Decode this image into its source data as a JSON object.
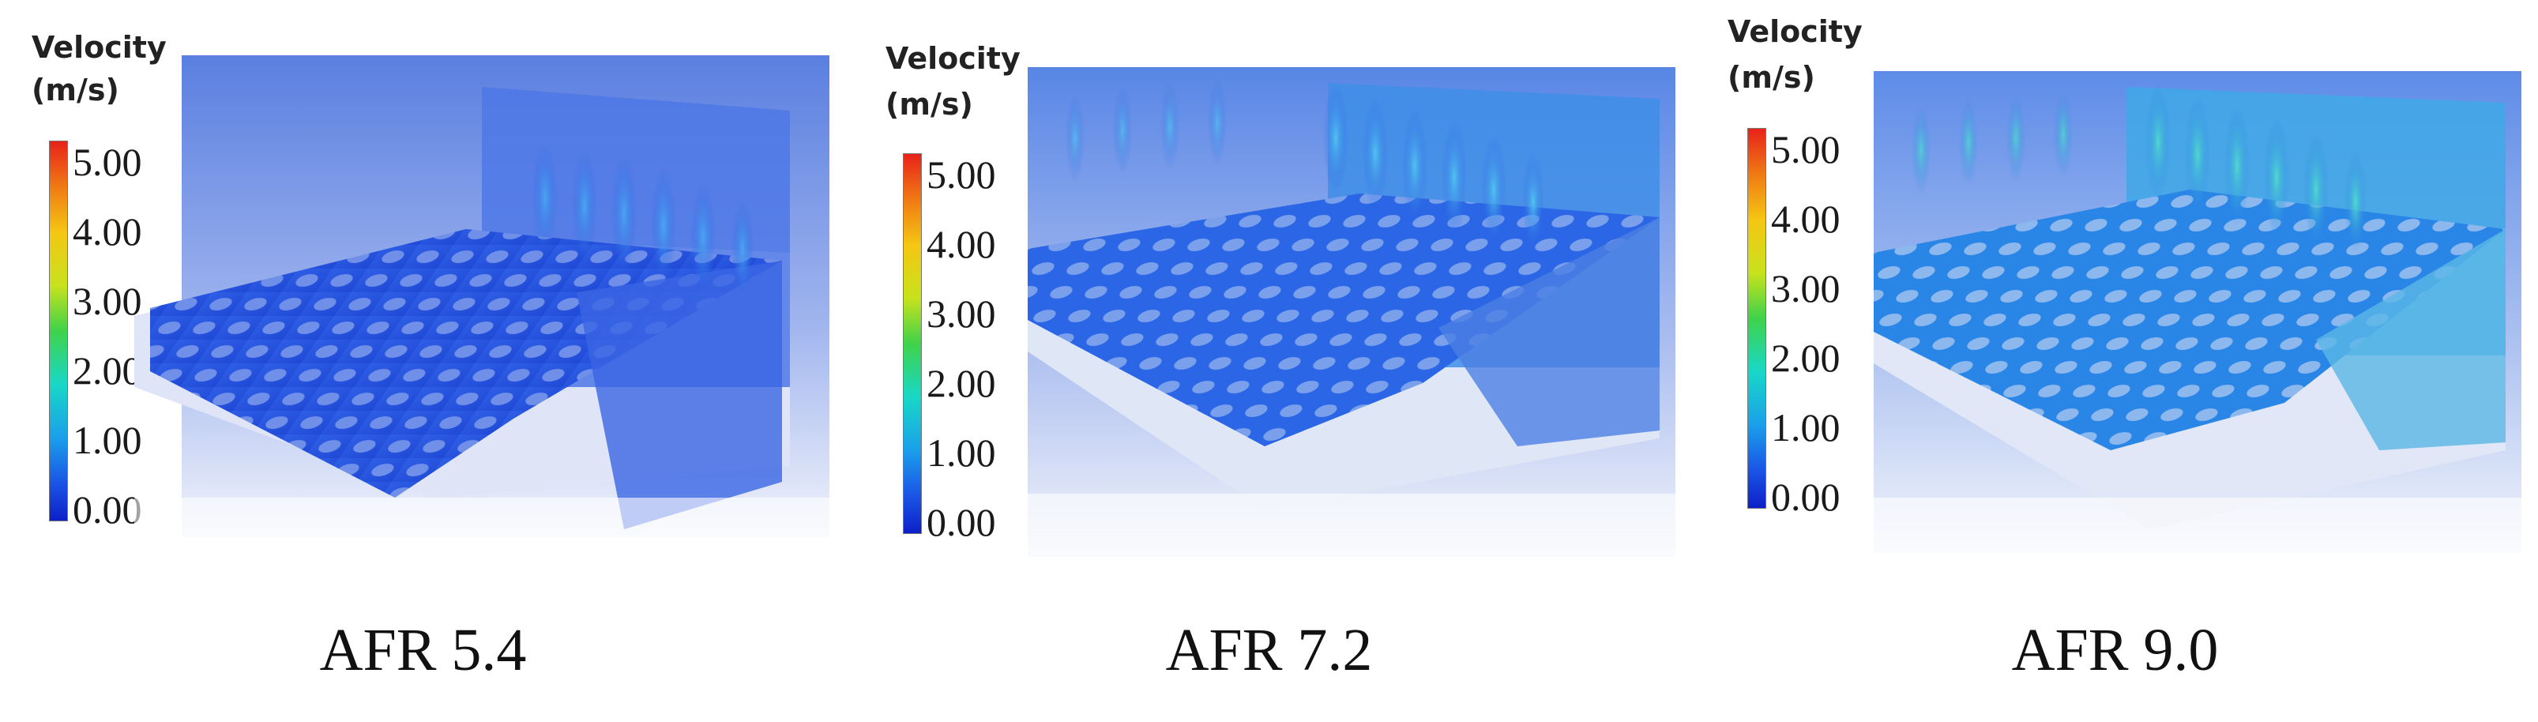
{
  "panels": [
    {
      "title_line1": "Velocity",
      "title_line2": "(m/s)",
      "ticks": [
        "5.00",
        "4.00",
        "3.00",
        "2.00",
        "1.00",
        "0.00"
      ],
      "caption": "AFR 5.4"
    },
    {
      "title_line1": "Velocity",
      "title_line2": "(m/s)",
      "ticks": [
        "5.00",
        "4.00",
        "3.00",
        "2.00",
        "1.00",
        "0.00"
      ],
      "caption": "AFR 7.2"
    },
    {
      "title_line1": "Velocity",
      "title_line2": "(m/s)",
      "ticks": [
        "5.00",
        "4.00",
        "3.00",
        "2.00",
        "1.00",
        "0.00"
      ],
      "caption": "AFR 9.0"
    }
  ],
  "colorscale": [
    "#0d1fc8",
    "#1a55e6",
    "#1aa0ea",
    "#18d8c6",
    "#3fd24a",
    "#c8e21c",
    "#f5c613",
    "#f07a14",
    "#e8221a"
  ]
}
